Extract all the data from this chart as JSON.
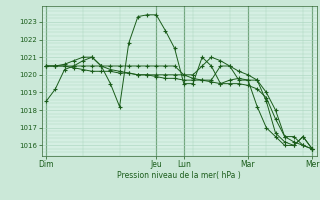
{
  "title": "",
  "xlabel": "Pression niveau de la mer( hPa )",
  "ylabel": "",
  "background_color": "#cbe8d8",
  "plot_bg_color": "#d5efe3",
  "grid_color": "#a8d4bc",
  "line_color": "#1a5c1a",
  "marker_color": "#1a5c1a",
  "ylim": [
    1015.4,
    1023.9
  ],
  "yticks": [
    1016,
    1017,
    1018,
    1019,
    1020,
    1021,
    1022,
    1023
  ],
  "xtick_labels": [
    "Dim",
    "Jeu",
    "Lun",
    "Mar",
    "Mer"
  ],
  "xtick_positions": [
    0,
    12,
    15,
    22,
    29
  ],
  "series": [
    {
      "x": [
        0,
        1,
        2,
        3,
        4,
        5,
        6,
        7,
        8,
        9,
        10,
        11,
        12,
        13,
        14,
        15,
        16,
        17,
        18,
        19,
        20,
        21,
        22,
        23,
        24,
        25,
        26,
        27,
        28,
        29
      ],
      "y": [
        1018.5,
        1019.2,
        1020.3,
        1020.5,
        1020.8,
        1021.0,
        1020.5,
        1019.5,
        1018.2,
        1021.8,
        1023.3,
        1023.4,
        1023.4,
        1022.5,
        1021.5,
        1019.5,
        1019.5,
        1021.0,
        1020.5,
        1019.5,
        1019.7,
        1019.8,
        1019.7,
        1018.2,
        1017.0,
        1016.5,
        1016.0,
        1016.0,
        1016.5,
        1015.8
      ]
    },
    {
      "x": [
        0,
        1,
        2,
        3,
        4,
        5,
        6,
        7,
        8,
        9,
        10,
        11,
        12,
        13,
        14,
        15,
        16,
        17,
        18,
        19,
        20,
        21,
        22,
        23,
        24,
        25,
        26,
        27,
        28,
        29
      ],
      "y": [
        1020.5,
        1020.5,
        1020.6,
        1020.8,
        1021.0,
        1021.0,
        1020.5,
        1020.3,
        1020.2,
        1020.1,
        1020.0,
        1020.0,
        1020.0,
        1020.0,
        1020.0,
        1020.0,
        1020.0,
        1020.5,
        1021.0,
        1020.8,
        1020.5,
        1020.2,
        1020.0,
        1019.7,
        1019.0,
        1018.0,
        1016.5,
        1016.5,
        1016.0,
        1015.8
      ]
    },
    {
      "x": [
        0,
        1,
        2,
        3,
        4,
        5,
        6,
        7,
        8,
        9,
        10,
        11,
        12,
        13,
        14,
        15,
        16,
        17,
        18,
        19,
        20,
        21,
        22,
        23,
        24,
        25,
        26,
        27,
        28,
        29
      ],
      "y": [
        1020.5,
        1020.5,
        1020.5,
        1020.5,
        1020.5,
        1020.5,
        1020.5,
        1020.5,
        1020.5,
        1020.5,
        1020.5,
        1020.5,
        1020.5,
        1020.5,
        1020.5,
        1020.0,
        1019.8,
        1019.7,
        1019.7,
        1020.5,
        1020.5,
        1019.7,
        1019.7,
        1019.7,
        1018.5,
        1016.7,
        1016.2,
        1016.0,
        1016.5,
        1015.8
      ]
    },
    {
      "x": [
        0,
        1,
        2,
        3,
        4,
        5,
        6,
        7,
        8,
        9,
        10,
        11,
        12,
        13,
        14,
        15,
        16,
        17,
        18,
        19,
        20,
        21,
        22,
        23,
        24,
        25,
        26,
        27,
        28,
        29
      ],
      "y": [
        1020.5,
        1020.5,
        1020.5,
        1020.4,
        1020.3,
        1020.2,
        1020.2,
        1020.2,
        1020.1,
        1020.1,
        1020.0,
        1020.0,
        1019.9,
        1019.8,
        1019.8,
        1019.7,
        1019.7,
        1019.7,
        1019.6,
        1019.5,
        1019.5,
        1019.5,
        1019.4,
        1019.2,
        1018.7,
        1017.5,
        1016.5,
        1016.2,
        1016.0,
        1015.8
      ]
    }
  ]
}
